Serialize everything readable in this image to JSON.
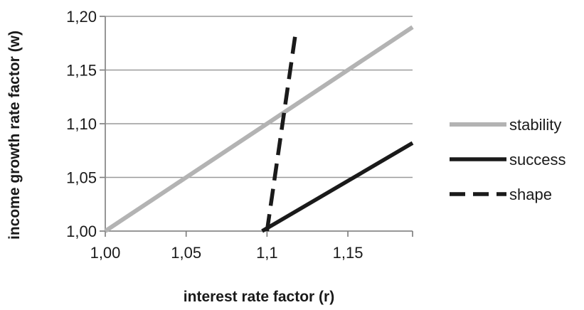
{
  "chart_data": {
    "type": "line",
    "xlabel": "interest rate factor (r)",
    "ylabel": "income growth rate factor (w)",
    "xlim": [
      1.0,
      1.19
    ],
    "ylim": [
      1.0,
      1.2
    ],
    "x_ticks": [
      "1,00",
      "1,05",
      "1,1",
      "1,15"
    ],
    "x_tick_values": [
      1.0,
      1.05,
      1.1,
      1.15
    ],
    "y_ticks": [
      "1,00",
      "1,05",
      "1,10",
      "1,15",
      "1,20"
    ],
    "y_tick_values": [
      1.0,
      1.05,
      1.1,
      1.15,
      1.2
    ],
    "grid": "horizontal",
    "legend_position": "right",
    "series": [
      {
        "name": "stability",
        "color": "#b3b3b3",
        "style": "solid",
        "points": [
          [
            1.0,
            1.0
          ],
          [
            1.19,
            1.19
          ]
        ]
      },
      {
        "name": "success",
        "color": "#1a1a1a",
        "style": "solid",
        "points": [
          [
            1.097,
            1.0
          ],
          [
            1.19,
            1.082
          ]
        ]
      },
      {
        "name": "shape",
        "color": "#1a1a1a",
        "style": "dashed",
        "points": [
          [
            1.1,
            1.0
          ],
          [
            1.118,
            1.188
          ]
        ]
      }
    ]
  }
}
